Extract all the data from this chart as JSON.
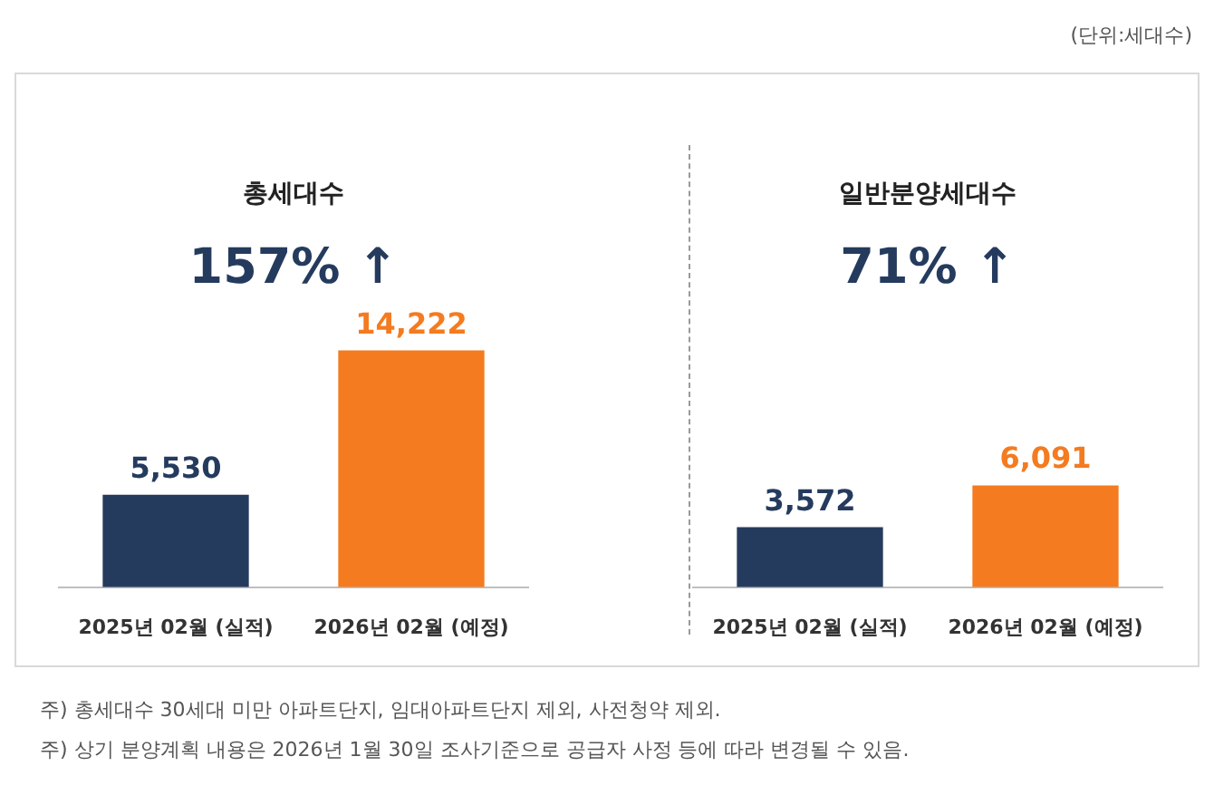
{
  "chart_data": [
    {
      "type": "bar",
      "title": "총세대수",
      "categories": [
        "2025년 02월 (실적)",
        "2026년 02월 (예정)"
      ],
      "values": [
        5530,
        14222
      ],
      "value_labels": [
        "5,530",
        "14,222"
      ],
      "colors": [
        "#253b5e",
        "#f47b20"
      ],
      "annotations": [
        "157% ↑",
        "주) 총세대수 30세대 미만 아파트단지, 임대아파트단지 제외, 사전청약 제외.",
        "주) 상기 분양계획 내용은 2026년 1월 30일 조사기준으로 공급자 사정 등에 따라 변경될 수 있음."
      ]
    },
    {
      "type": "bar",
      "title": "일반분양세대수",
      "categories": [
        "2025년 02월 (실적)",
        "2026년 02월 (예정)"
      ],
      "values": [
        3572,
        6091
      ],
      "value_labels": [
        "3,572",
        "6,091"
      ],
      "colors": [
        "#253b5e",
        "#f47b20"
      ],
      "annotations": [
        "71% ↑",
        "(단위:세대수)"
      ]
    }
  ]
}
